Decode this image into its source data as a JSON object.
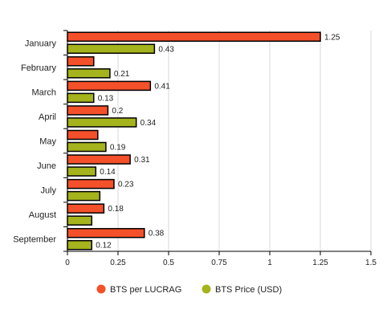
{
  "chart_data": {
    "type": "bar",
    "orientation": "horizontal",
    "categories": [
      "January",
      "February",
      "March",
      "April",
      "May",
      "June",
      "July",
      "August",
      "September"
    ],
    "series": [
      {
        "name": "BTS per LUCRAG",
        "color": "#f4502a",
        "values": [
          1.25,
          0.13,
          0.41,
          0.2,
          0.15,
          0.31,
          0.23,
          0.18,
          0.38
        ],
        "labels": [
          "1.25",
          "",
          "0.41",
          "0.2",
          "",
          "0.31",
          "0.23",
          "0.18",
          "0.38"
        ]
      },
      {
        "name": "BTS Price (USD)",
        "color": "#a5b31c",
        "values": [
          0.43,
          0.21,
          0.13,
          0.34,
          0.19,
          0.14,
          0.16,
          0.12,
          0.12
        ],
        "labels": [
          "0.43",
          "0.21",
          "0.13",
          "0.34",
          "0.19",
          "0.14",
          "",
          "",
          "0.12"
        ]
      }
    ],
    "xlim": [
      0,
      1.5
    ],
    "xticks": [
      "0",
      "0.25",
      "0.5",
      "0.75",
      "1",
      "1.25",
      "1.5"
    ],
    "grid": "vertical",
    "legend": "bottom-center"
  }
}
